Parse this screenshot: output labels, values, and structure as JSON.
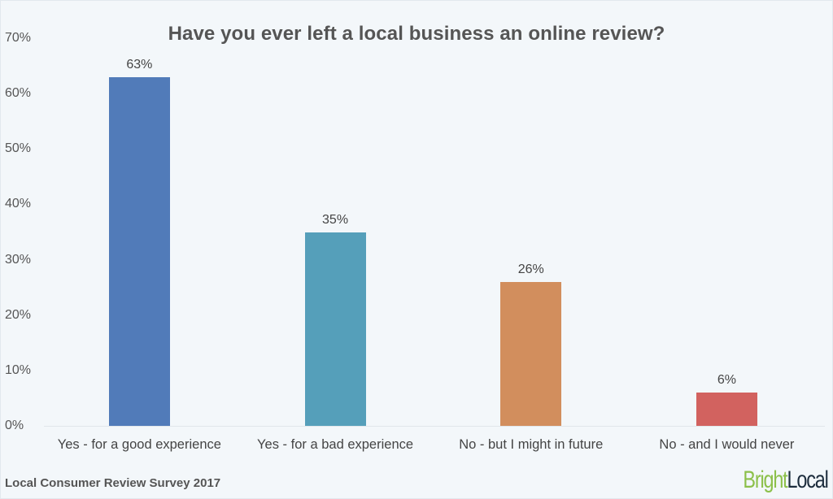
{
  "chart_data": {
    "type": "bar",
    "title": "Have you ever left a local business an online review?",
    "xlabel": "",
    "ylabel": "",
    "ylim": [
      0,
      70
    ],
    "yticks": [
      "0%",
      "10%",
      "20%",
      "30%",
      "40%",
      "50%",
      "60%",
      "70%"
    ],
    "grid": false,
    "legend": null,
    "categories": [
      "Yes - for a good experience",
      "Yes - for a bad experience",
      "No - but I might in future",
      "No - and I would never"
    ],
    "values": [
      63,
      35,
      26,
      6
    ],
    "value_labels": [
      "63%",
      "35%",
      "26%",
      "6%"
    ],
    "colors": [
      "#517bb9",
      "#559fba",
      "#d28e5d",
      "#d2625f"
    ]
  },
  "footer": {
    "source": "Local Consumer Review Survey 2017"
  },
  "logo": {
    "part1": "Bright",
    "part2": "Local",
    "color1": "#8cc04a",
    "color2": "#1d2d3d"
  }
}
